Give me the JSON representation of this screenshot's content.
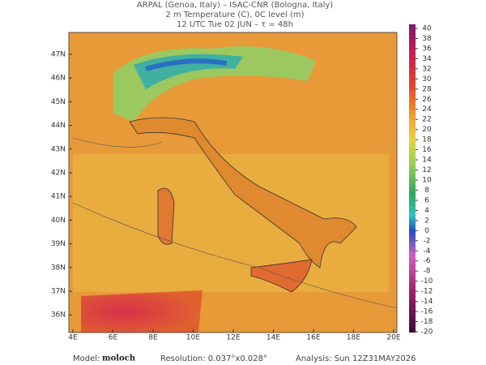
{
  "header": {
    "lines": [
      "ARPAL (Genoa, Italy)  –  ISAC-CNR (Bologna, Italy)",
      "2 m Temperature (C), 0C level (m)",
      "12 UTC Tue 02 JUN  –  τ = 48h"
    ]
  },
  "map": {
    "lon_labels": [
      "4E",
      "6E",
      "8E",
      "10E",
      "12E",
      "14E",
      "16E",
      "18E",
      "20E"
    ],
    "lat_labels": [
      "47N",
      "46N",
      "45N",
      "44N",
      "43N",
      "42N",
      "41N",
      "40N",
      "39N",
      "38N",
      "37N",
      "36N"
    ]
  },
  "colorbar": {
    "ticks": [
      40,
      38,
      36,
      34,
      32,
      30,
      28,
      26,
      24,
      22,
      20,
      18,
      16,
      14,
      12,
      10,
      8,
      6,
      4,
      2,
      0,
      -2,
      -4,
      -6,
      -8,
      -10,
      -12,
      -14,
      -16,
      -18,
      -20
    ]
  },
  "footer": {
    "model_label": "Model:",
    "model": "moloch",
    "resolution": "Resolution: 0.037°x0.028°",
    "analysis": "Analysis: Sun 12Z31MAY2026"
  }
}
